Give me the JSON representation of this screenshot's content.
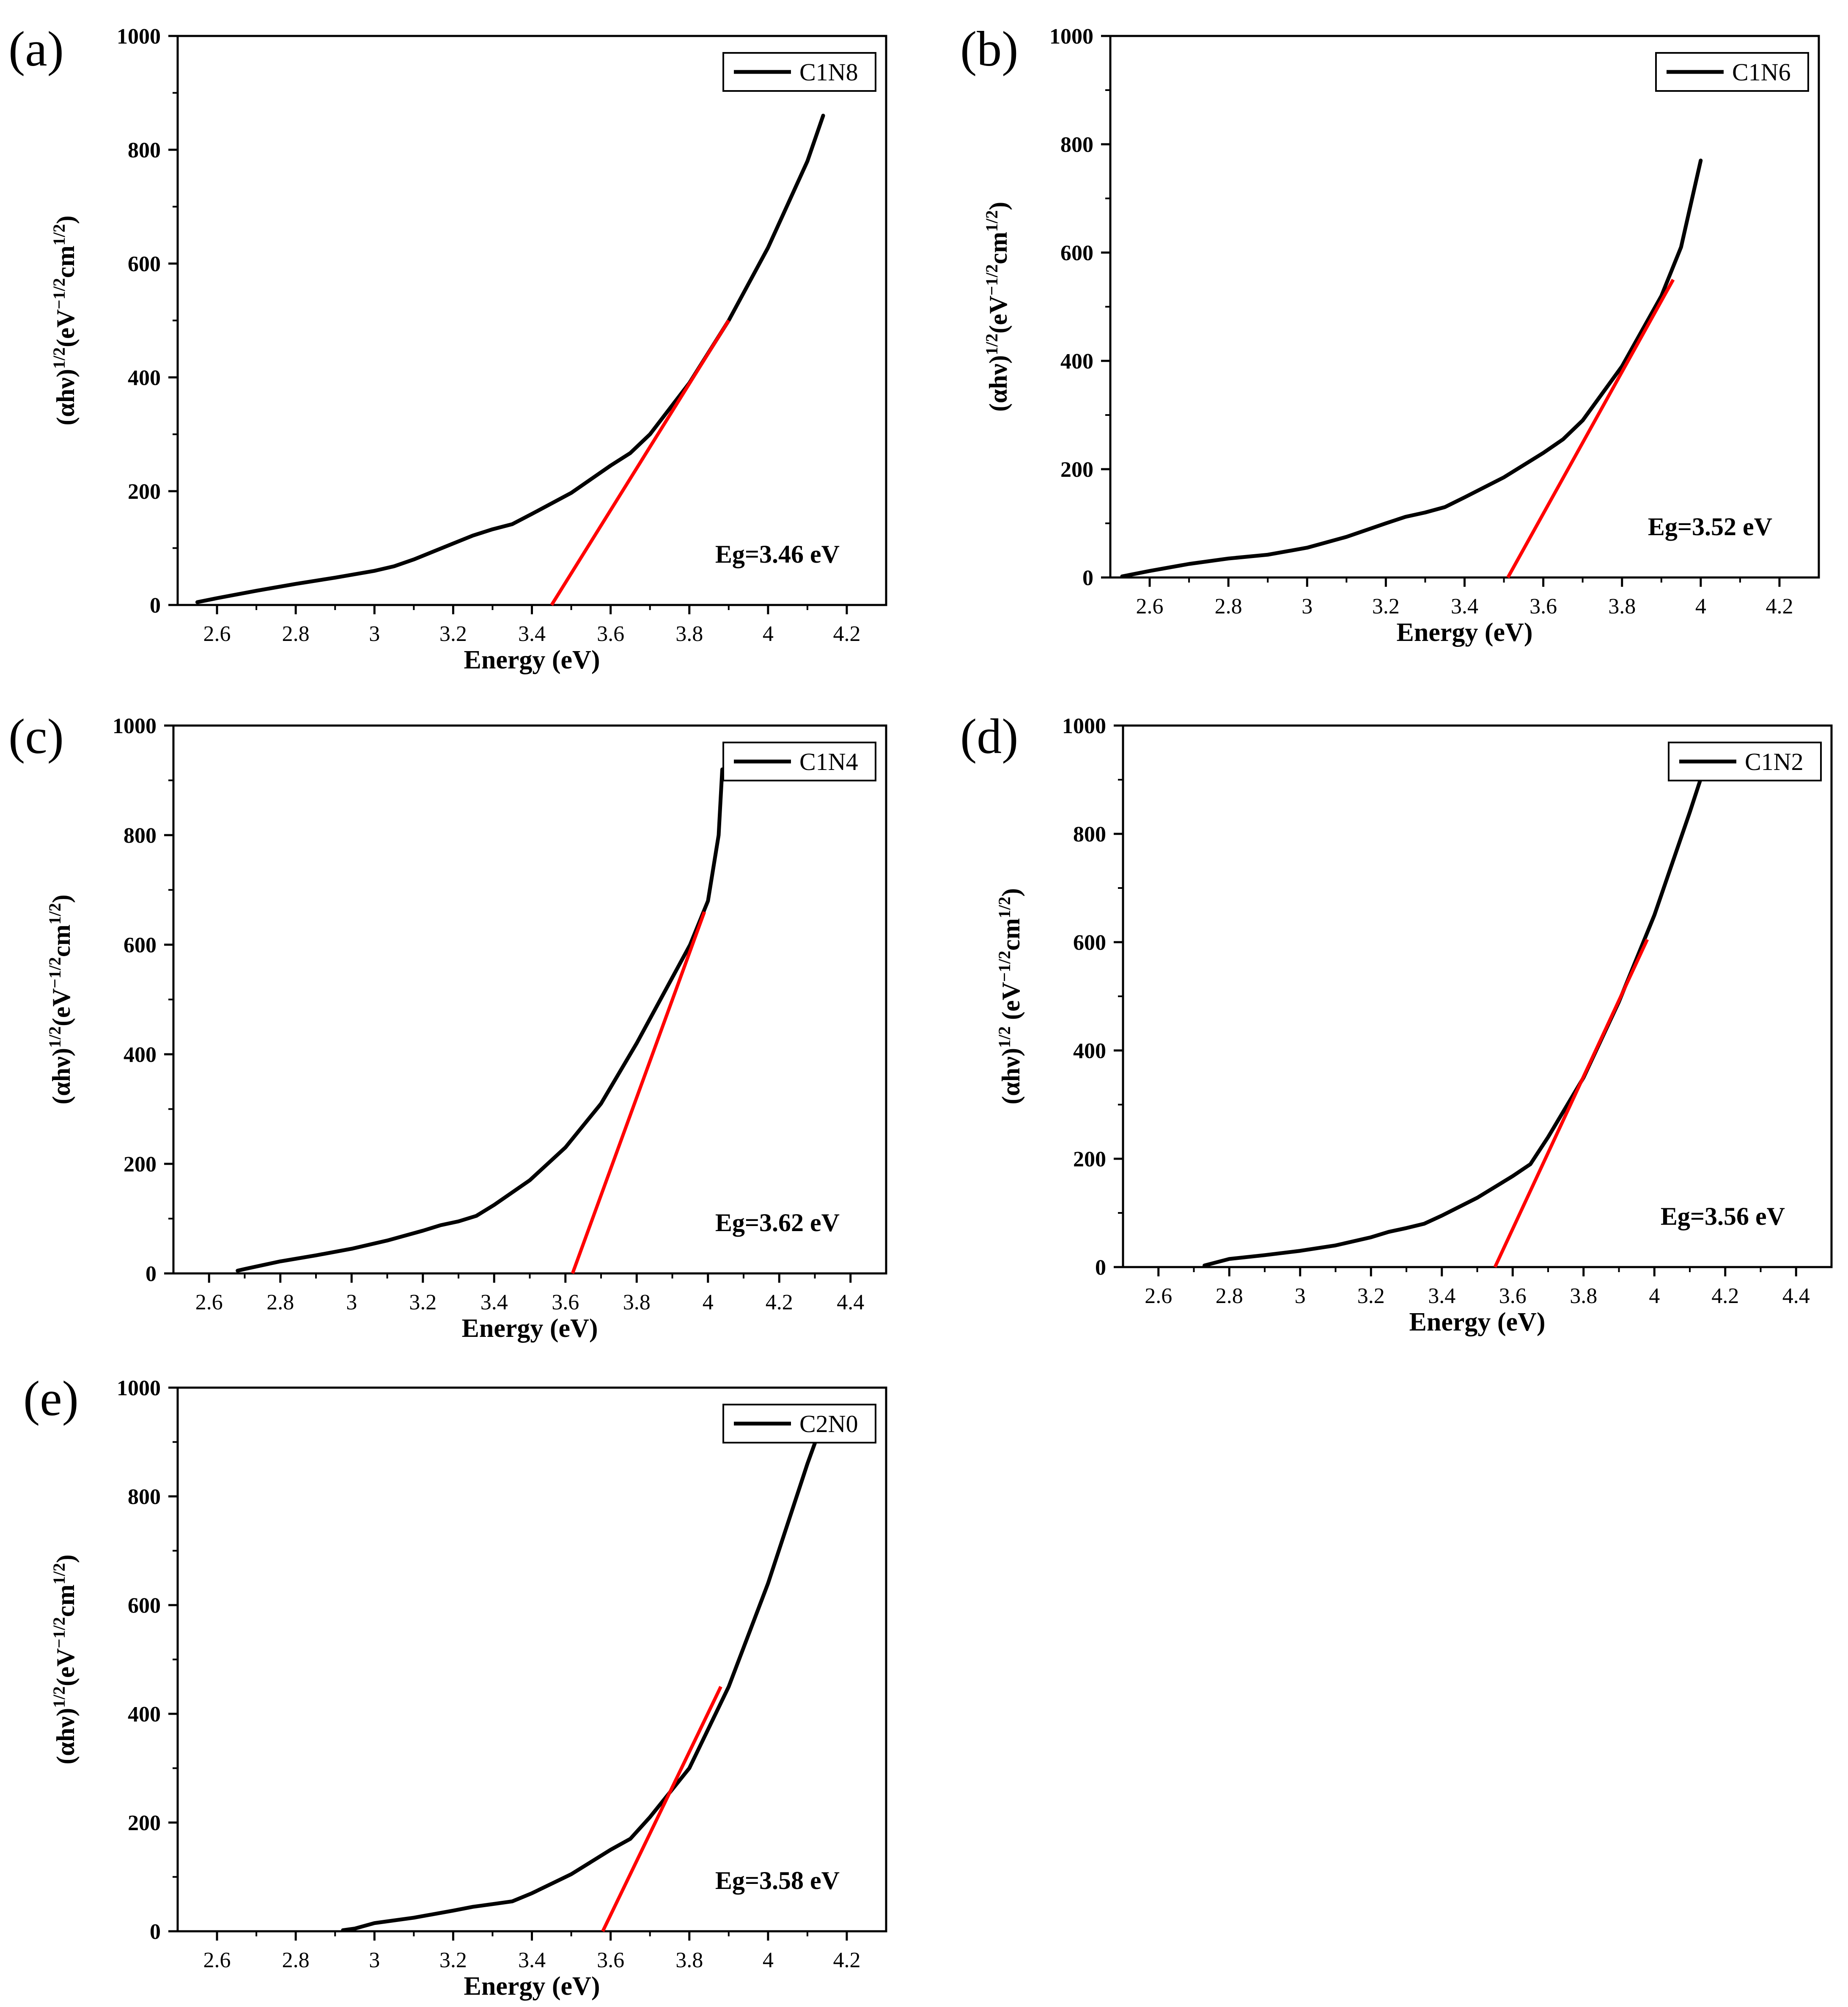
{
  "chart_data": [
    {
      "id": "a",
      "panel_label": "(a)",
      "type": "line",
      "title": "",
      "xlabel": "Energy (eV)",
      "ylabel": "(αhν)^1/2(eV^-1/2cm^1/2)",
      "ylabel_parts": {
        "base": "(αhν)",
        "sup1": "1/2",
        "mid": "(eV",
        "sup2": "−1/2",
        "mid2": "cm",
        "sup3": "1/2",
        "end": ")"
      },
      "xlim": [
        2.5,
        4.3
      ],
      "ylim": [
        0,
        1000
      ],
      "xticks": [
        2.6,
        2.8,
        3.0,
        3.2,
        3.4,
        3.6,
        3.8,
        4.0,
        4.2
      ],
      "yticks": [
        0,
        200,
        400,
        600,
        800,
        1000
      ],
      "legend": "C1N8",
      "legend_position": "top-right",
      "annotation": "Eg=3.46 eV",
      "series": [
        {
          "name": "C1N8",
          "x": [
            2.55,
            2.6,
            2.7,
            2.8,
            2.9,
            3.0,
            3.05,
            3.1,
            3.2,
            3.25,
            3.3,
            3.35,
            3.4,
            3.5,
            3.6,
            3.65,
            3.7,
            3.8,
            3.9,
            4.0,
            4.1,
            4.14
          ],
          "y": [
            5,
            12,
            25,
            37,
            48,
            60,
            68,
            80,
            108,
            122,
            133,
            142,
            160,
            197,
            245,
            267,
            300,
            390,
            500,
            628,
            780,
            860
          ]
        }
      ],
      "fit_line": {
        "x": [
          3.45,
          3.9
        ],
        "y": [
          0,
          500
        ],
        "color": "#ff0000"
      }
    },
    {
      "id": "b",
      "panel_label": "(b)",
      "type": "line",
      "title": "",
      "xlabel": "Energy (eV)",
      "ylabel": "(αhν)^1/2(eV^-1/2cm^1/2)",
      "ylabel_parts": {
        "base": "(αhν)",
        "sup1": "1/2",
        "mid": "(eV",
        "sup2": "−1/2",
        "mid2": "cm",
        "sup3": "1/2",
        "end": ")"
      },
      "xlim": [
        2.5,
        4.3
      ],
      "ylim": [
        0,
        1000
      ],
      "xticks": [
        2.6,
        2.8,
        3.0,
        3.2,
        3.4,
        3.6,
        3.8,
        4.0,
        4.2
      ],
      "yticks": [
        0,
        200,
        400,
        600,
        800,
        1000
      ],
      "legend": "C1N6",
      "legend_position": "top-right",
      "annotation": "Eg=3.52 eV",
      "series": [
        {
          "name": "C1N6",
          "x": [
            2.53,
            2.6,
            2.7,
            2.8,
            2.9,
            3.0,
            3.1,
            3.2,
            3.25,
            3.3,
            3.35,
            3.4,
            3.5,
            3.6,
            3.65,
            3.7,
            3.8,
            3.9,
            3.95,
            4.0
          ],
          "y": [
            2,
            12,
            25,
            35,
            42,
            55,
            75,
            100,
            112,
            120,
            130,
            148,
            185,
            230,
            255,
            290,
            390,
            520,
            610,
            770
          ]
        }
      ],
      "fit_line": {
        "x": [
          3.51,
          3.93
        ],
        "y": [
          0,
          550
        ],
        "color": "#ff0000"
      }
    },
    {
      "id": "c",
      "panel_label": "(c)",
      "type": "line",
      "title": "",
      "xlabel": "Energy (eV)",
      "ylabel": "(αhν)^1/2(eV^-1/2cm^1/2)",
      "ylabel_parts": {
        "base": "(αhν)",
        "sup1": "1/2",
        "mid": "(eV",
        "sup2": "−1/2",
        "mid2": "cm",
        "sup3": "1/2",
        "end": ")"
      },
      "xlim": [
        2.5,
        4.5
      ],
      "ylim": [
        0,
        1000
      ],
      "xticks": [
        2.6,
        2.8,
        3.0,
        3.2,
        3.4,
        3.6,
        3.8,
        4.0,
        4.2,
        4.4
      ],
      "yticks": [
        0,
        200,
        400,
        600,
        800,
        1000
      ],
      "legend": "C1N4",
      "legend_position": "top-right",
      "annotation": "Eg=3.62 eV",
      "series": [
        {
          "name": "C1N4",
          "x": [
            2.68,
            2.7,
            2.8,
            2.9,
            3.0,
            3.1,
            3.2,
            3.25,
            3.3,
            3.35,
            3.4,
            3.5,
            3.6,
            3.7,
            3.8,
            3.9,
            3.95,
            4.0,
            4.03,
            4.04
          ],
          "y": [
            5,
            8,
            22,
            33,
            45,
            60,
            78,
            88,
            95,
            105,
            125,
            170,
            230,
            310,
            420,
            540,
            600,
            680,
            800,
            920
          ]
        }
      ],
      "fit_line": {
        "x": [
          3.62,
          3.99
        ],
        "y": [
          0,
          660
        ],
        "color": "#ff0000"
      }
    },
    {
      "id": "d",
      "panel_label": "(d)",
      "type": "line",
      "title": "",
      "xlabel": "Energy (eV)",
      "ylabel": "(αhν)^1/2 (eV^-1/2cm^1/2)",
      "ylabel_parts": {
        "base": "(αhν)",
        "sup1": "1/2",
        "mid": " (eV",
        "sup2": "−1/2",
        "mid2": "cm",
        "sup3": "1/2",
        "end": ")"
      },
      "xlim": [
        2.5,
        4.5
      ],
      "ylim": [
        0,
        1000
      ],
      "xticks": [
        2.6,
        2.8,
        3.0,
        3.2,
        3.4,
        3.6,
        3.8,
        4.0,
        4.2,
        4.4
      ],
      "yticks": [
        0,
        200,
        400,
        600,
        800,
        1000
      ],
      "legend": "C1N2",
      "legend_position": "top-right",
      "annotation": "Eg=3.56 eV",
      "series": [
        {
          "name": "C1N2",
          "x": [
            2.73,
            2.8,
            2.9,
            3.0,
            3.1,
            3.2,
            3.25,
            3.3,
            3.35,
            3.4,
            3.5,
            3.6,
            3.65,
            3.7,
            3.8,
            3.9,
            4.0,
            4.1,
            4.14
          ],
          "y": [
            3,
            15,
            22,
            30,
            40,
            55,
            65,
            72,
            80,
            95,
            128,
            168,
            190,
            240,
            350,
            490,
            650,
            840,
            920
          ]
        }
      ],
      "fit_line": {
        "x": [
          3.55,
          3.98
        ],
        "y": [
          0,
          605
        ],
        "color": "#ff0000"
      }
    },
    {
      "id": "e",
      "panel_label": "(e)",
      "type": "line",
      "title": "",
      "xlabel": "Energy (eV)",
      "ylabel": "(αhν)^1/2(eV^-1/2cm^1/2)",
      "ylabel_parts": {
        "base": "(αhν)",
        "sup1": "1/2",
        "mid": "(eV",
        "sup2": "−1/2",
        "mid2": "cm",
        "sup3": "1/2",
        "end": ")"
      },
      "xlim": [
        2.5,
        4.3
      ],
      "ylim": [
        0,
        1000
      ],
      "xticks": [
        2.6,
        2.8,
        3.0,
        3.2,
        3.4,
        3.6,
        3.8,
        4.0,
        4.2
      ],
      "yticks": [
        0,
        200,
        400,
        600,
        800,
        1000
      ],
      "legend": "C2N0",
      "legend_position": "top-right",
      "annotation": "Eg=3.58 eV",
      "series": [
        {
          "name": "C2N0",
          "x": [
            2.92,
            2.95,
            3.0,
            3.1,
            3.2,
            3.25,
            3.3,
            3.35,
            3.4,
            3.5,
            3.6,
            3.65,
            3.7,
            3.8,
            3.9,
            4.0,
            4.1,
            4.12
          ],
          "y": [
            2,
            5,
            15,
            25,
            38,
            45,
            50,
            55,
            70,
            105,
            150,
            170,
            210,
            300,
            450,
            640,
            860,
            900
          ]
        }
      ],
      "fit_line": {
        "x": [
          3.58,
          3.88
        ],
        "y": [
          0,
          450
        ],
        "color": "#ff0000"
      }
    }
  ]
}
